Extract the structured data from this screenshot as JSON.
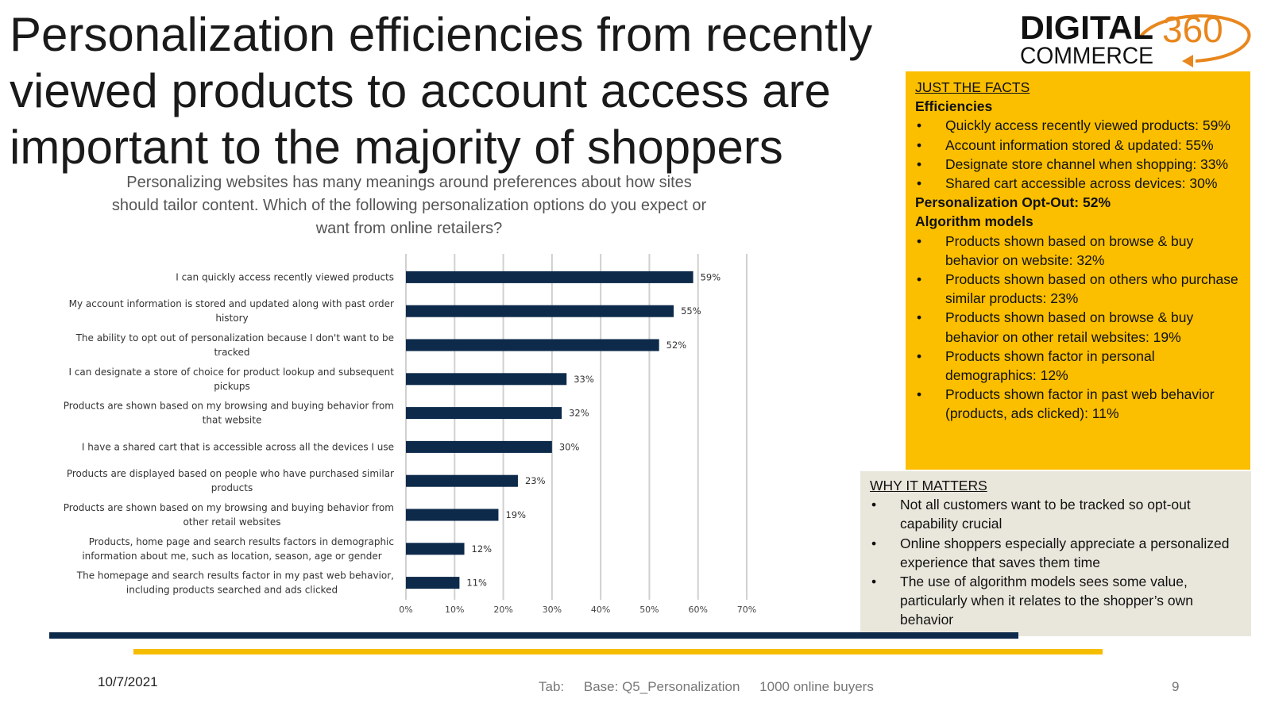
{
  "slide": {
    "title": "Personalization efficiencies from recently viewed products to account access are important to the majority of shoppers",
    "subtitle": "Personalizing websites has many meanings around preferences about how sites should tailor content. Which of the following personalization options do you expect or want from online retailers?"
  },
  "logo": {
    "word1": "DIGITAL",
    "word2": "COMMERCE",
    "number": "360",
    "colors": {
      "text": "#111111",
      "accent": "#e8871e"
    }
  },
  "facts": {
    "heading": "JUST THE FACTS",
    "efficiencies_label": "Efficiencies",
    "efficiencies": [
      "Quickly access recently viewed products: 59%",
      "Account information stored & updated:  55%",
      "Designate store channel when shopping: 33%",
      "Shared cart accessible across devices:  30%"
    ],
    "optout_label": "Personalization Opt-Out:  52%",
    "algorithm_label": "Algorithm models",
    "algorithm": [
      "Products shown based on browse & buy behavior on website:  32%",
      "Products shown based on others who purchase similar products:  23%",
      "Products shown based on browse & buy behavior on other retail websites:  19%",
      "Products shown factor in personal demographics:  12%",
      "Products shown factor in past web behavior (products, ads clicked):  11%"
    ]
  },
  "matters": {
    "heading": "WHY IT MATTERS",
    "items": [
      "Not all customers want to be tracked so opt-out capability crucial",
      "Online shoppers especially appreciate a personalized experience that saves them time",
      "The use of algorithm models sees some value, particularly when it relates to the shopper’s own behavior"
    ]
  },
  "footer": {
    "date": "10/7/2021",
    "tab": "Tab:",
    "base": "Base: Q5_Personalization",
    "sample": "1000 online buyers",
    "page": "9"
  },
  "colors": {
    "bar": "#0d2a4a",
    "gold": "#fbbf00",
    "beige": "#e9e7dc",
    "grid": "#d0d0d0"
  },
  "chart_data": {
    "type": "bar",
    "orientation": "horizontal",
    "categories": [
      [
        "I can quickly access recently viewed products"
      ],
      [
        "My account information is stored and updated along with past order",
        "history"
      ],
      [
        "The ability to opt out of personalization because I don't want to be",
        "tracked"
      ],
      [
        "I can designate a store of choice for product lookup and subsequent",
        "pickups"
      ],
      [
        "Products are shown based on my browsing and buying behavior from",
        "that website"
      ],
      [
        "I have a shared cart that is accessible across all the devices I use"
      ],
      [
        "Products are displayed based on people who have purchased similar",
        "products"
      ],
      [
        "Products are shown based on my browsing and buying behavior from",
        "other retail websites"
      ],
      [
        "Products, home page and search results factors in demographic",
        "information about me, such as location, season, age or gender"
      ],
      [
        "The homepage and search results factor in my past web behavior,",
        "including products searched and ads clicked"
      ]
    ],
    "values": [
      59,
      55,
      52,
      33,
      32,
      30,
      23,
      19,
      12,
      11
    ],
    "data_labels": [
      "59%",
      "55%",
      "52%",
      "33%",
      "32%",
      "30%",
      "23%",
      "19%",
      "12%",
      "11%"
    ],
    "x_ticks": [
      0,
      10,
      20,
      30,
      40,
      50,
      60,
      70
    ],
    "x_tick_labels": [
      "0%",
      "10%",
      "20%",
      "30%",
      "40%",
      "50%",
      "60%",
      "70%"
    ],
    "xlim": [
      0,
      70
    ],
    "grid": true,
    "title": "",
    "xlabel": "",
    "ylabel": ""
  }
}
